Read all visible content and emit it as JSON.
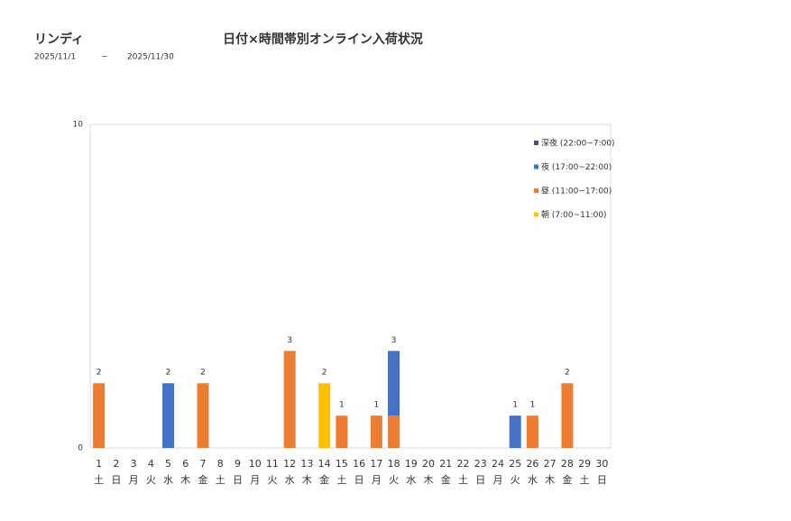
{
  "header": {
    "store": "リンディ",
    "title": "日付×時間帯別オンライン入荷状況",
    "date_from": "2025/11/1",
    "date_sep": "~",
    "date_to": "2025/11/30"
  },
  "chart_data": {
    "type": "stacked_bar",
    "categories": [
      "1",
      "2",
      "3",
      "4",
      "5",
      "6",
      "7",
      "8",
      "9",
      "10",
      "11",
      "12",
      "13",
      "14",
      "15",
      "16",
      "17",
      "18",
      "19",
      "20",
      "21",
      "22",
      "23",
      "24",
      "25",
      "26",
      "27",
      "28",
      "29",
      "30"
    ],
    "weekdays": [
      "土",
      "日",
      "月",
      "火",
      "水",
      "木",
      "金",
      "土",
      "日",
      "月",
      "火",
      "水",
      "木",
      "金",
      "土",
      "日",
      "月",
      "火",
      "水",
      "木",
      "金",
      "土",
      "日",
      "月",
      "火",
      "水",
      "木",
      "金",
      "土",
      "日"
    ],
    "series": [
      {
        "name": "朝 (7:00~11:00)",
        "color": "#ffc000",
        "values": [
          0,
          0,
          0,
          0,
          0,
          0,
          0,
          0,
          0,
          0,
          0,
          0,
          0,
          2,
          0,
          0,
          0,
          0,
          0,
          0,
          0,
          0,
          0,
          0,
          0,
          0,
          0,
          0,
          0,
          0
        ]
      },
      {
        "name": "昼 (11:00~17:00)",
        "color": "#ed7d31",
        "values": [
          2,
          0,
          0,
          0,
          0,
          0,
          2,
          0,
          0,
          0,
          0,
          3,
          0,
          0,
          1,
          0,
          1,
          1,
          0,
          0,
          0,
          0,
          0,
          0,
          0,
          1,
          0,
          2,
          0,
          0
        ]
      },
      {
        "name": "夜 (17:00~22:00)",
        "color": "#4472c4",
        "values": [
          0,
          0,
          0,
          0,
          2,
          0,
          0,
          0,
          0,
          0,
          0,
          0,
          0,
          0,
          0,
          0,
          0,
          2,
          0,
          0,
          0,
          0,
          0,
          0,
          1,
          0,
          0,
          0,
          0,
          0
        ]
      },
      {
        "name": "深夜 (22:00~7:00)",
        "color": "#44546a",
        "values": [
          0,
          0,
          0,
          0,
          0,
          0,
          0,
          0,
          0,
          0,
          0,
          0,
          0,
          0,
          0,
          0,
          0,
          0,
          0,
          0,
          0,
          0,
          0,
          0,
          0,
          0,
          0,
          0,
          0,
          0
        ]
      }
    ],
    "totals": [
      2,
      null,
      null,
      null,
      2,
      null,
      2,
      null,
      null,
      null,
      null,
      3,
      null,
      2,
      1,
      null,
      1,
      3,
      null,
      null,
      null,
      null,
      null,
      null,
      1,
      1,
      null,
      2,
      null,
      null
    ],
    "ylim": [
      0,
      10
    ],
    "yticks": [
      0,
      10
    ]
  }
}
